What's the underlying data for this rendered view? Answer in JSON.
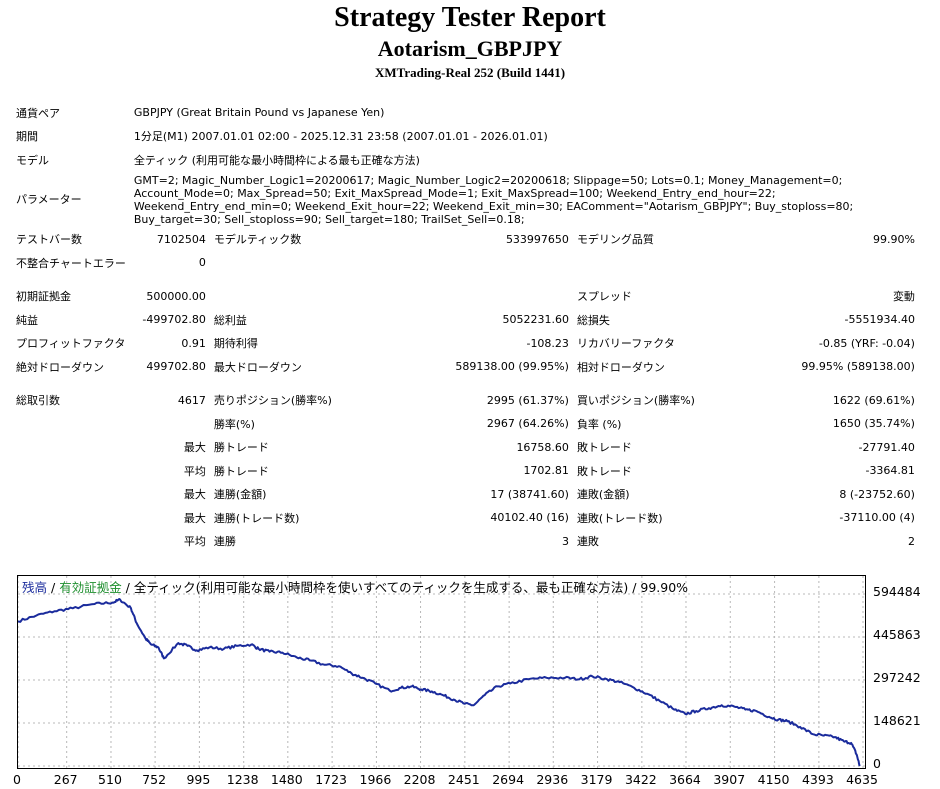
{
  "header": {
    "title": "Strategy Tester Report",
    "subtitle": "Aotarism_GBPJPY",
    "server": "XMTrading-Real 252 (Build 1441)"
  },
  "info": {
    "symbol_label": "通貨ペア",
    "symbol_value": "GBPJPY (Great Britain Pound vs Japanese Yen)",
    "period_label": "期間",
    "period_value": "1分足(M1) 2007.01.01 02:00 - 2025.12.31 23:58 (2007.01.01 - 2026.01.01)",
    "model_label": "モデル",
    "model_value": "全ティック (利用可能な最小時間枠による最も正確な方法)",
    "params_label": "パラメーター",
    "params_value": "GMT=2; Magic_Number_Logic1=20200617; Magic_Number_Logic2=20200618; Slippage=50; Lots=0.1; Money_Management=0; Account_Mode=0; Max_Spread=50; Exit_MaxSpread_Mode=1; Exit_MaxSpread=100; Weekend_Entry_end_hour=22; Weekend_Entry_end_min=0; Weekend_Exit_hour=22; Weekend_Exit_min=30; EAComment=\"Aotarism_GBPJPY\"; Buy_stoploss=80; Buy_target=30; Sell_stoploss=90; Sell_target=180; TrailSet_Sell=0.18;"
  },
  "stats": {
    "bars_label": "テストバー数",
    "bars_value": "7102504",
    "ticks_label": "モデルティック数",
    "ticks_value": "533997650",
    "quality_label": "モデリング品質",
    "quality_value": "99.90%",
    "mismatch_label": "不整合チャートエラー",
    "mismatch_value": "0",
    "deposit_label": "初期証拠金",
    "deposit_value": "500000.00",
    "spread_label": "スプレッド",
    "spread_value": "変動",
    "netprofit_label": "純益",
    "netprofit_value": "-499702.80",
    "grossprofit_label": "総利益",
    "grossprofit_value": "5052231.60",
    "grossloss_label": "総損失",
    "grossloss_value": "-5551934.40",
    "pf_label": "プロフィットファクタ",
    "pf_value": "0.91",
    "expected_label": "期待利得",
    "expected_value": "-108.23",
    "recovery_label": "リカバリーファクタ",
    "recovery_value": "-0.85 (YRF: -0.04)",
    "absdd_label": "絶対ドローダウン",
    "absdd_value": "499702.80",
    "maxdd_label": "最大ドローダウン",
    "maxdd_value": "589138.00 (99.95%)",
    "reldd_label": "相対ドローダウン",
    "reldd_value": "99.95% (589138.00)",
    "trades_label": "総取引数",
    "trades_value": "4617",
    "short_label": "売りポジション(勝率%)",
    "short_value": "2995 (61.37%)",
    "long_label": "買いポジション(勝率%)",
    "long_value": "1622 (69.61%)",
    "winrate_label": "勝率(%)",
    "winrate_value": "2967 (64.26%)",
    "lossrate_label": "負率 (%)",
    "lossrate_value": "1650 (35.74%)",
    "max_label": "最大",
    "avg_label": "平均",
    "largest_win_label": "勝トレード",
    "largest_win_value": "16758.60",
    "largest_loss_label": "敗トレード",
    "largest_loss_value": "-27791.40",
    "avg_win_label": "勝トレード",
    "avg_win_value": "1702.81",
    "avg_loss_label": "敗トレード",
    "avg_loss_value": "-3364.81",
    "consec_wins_money_label": "連勝(金額)",
    "consec_wins_money_value": "17 (38741.60)",
    "consec_losses_money_label": "連敗(金額)",
    "consec_losses_money_value": "8 (-23752.60)",
    "consec_wins_count_label": "連勝(トレード数)",
    "consec_wins_count_value": "40102.40 (16)",
    "consec_losses_count_label": "連敗(トレード数)",
    "consec_losses_count_value": "-37110.00 (4)",
    "avg_consec_wins_label": "連勝",
    "avg_consec_wins_value": "3",
    "avg_consec_losses_label": "連敗",
    "avg_consec_losses_value": "2"
  },
  "chart_data": {
    "type": "line",
    "legend_balance": "残高",
    "legend_sep1": " / ",
    "legend_equity": "有効証拠金",
    "legend_rest": " / 全ティック(利用可能な最小時間枠を使いすべてのティックを生成する、最も正確な方法) / 99.90%",
    "colors": {
      "balance": "#1a2b9c",
      "equity": "#1e8f2e",
      "grid": "#b8b8b8"
    },
    "y_ticks": [
      "594484",
      "445863",
      "297242",
      "148621",
      "0"
    ],
    "y_tick_values": [
      594484,
      445863,
      297242,
      148621,
      0
    ],
    "x_ticks": [
      "0",
      "267",
      "510",
      "752",
      "995",
      "1238",
      "1480",
      "1723",
      "1966",
      "2208",
      "2451",
      "2694",
      "2936",
      "3179",
      "3422",
      "3664",
      "3907",
      "4150",
      "4393",
      "4635"
    ],
    "x_tick_values": [
      0,
      267,
      510,
      752,
      995,
      1238,
      1480,
      1723,
      1966,
      2208,
      2451,
      2694,
      2936,
      3179,
      3422,
      3664,
      3907,
      4150,
      4393,
      4635
    ],
    "xlim": [
      0,
      4617
    ],
    "ylim": [
      0,
      594484
    ],
    "grid": true,
    "series": [
      {
        "x": [
          0,
          100,
          200,
          300,
          420,
          520,
          560,
          620,
          650,
          700,
          730,
          770,
          800,
          880,
          930,
          980,
          1050,
          1130,
          1200,
          1280,
          1320,
          1380,
          1450,
          1530,
          1600,
          1680,
          1760,
          1830,
          1890,
          1960,
          2040,
          2100,
          2160,
          2210,
          2270,
          2330,
          2390,
          2451,
          2500,
          2560,
          2630,
          2700,
          2800,
          2900,
          3000,
          3080,
          3150,
          3230,
          3300,
          3380,
          3450,
          3520,
          3600,
          3660,
          3720,
          3790,
          3860,
          3930,
          3990,
          4050,
          4120,
          4170,
          4220,
          4290,
          4360,
          4420,
          4480,
          4530,
          4570,
          4600,
          4617
        ],
        "y": [
          500000,
          520000,
          535000,
          545000,
          560000,
          565000,
          575000,
          545000,
          495000,
          440000,
          420000,
          410000,
          372000,
          425000,
          415000,
          400000,
          410000,
          405000,
          415000,
          420000,
          405000,
          395000,
          392000,
          375000,
          365000,
          350000,
          345000,
          320000,
          305000,
          285000,
          260000,
          270000,
          275000,
          265000,
          258000,
          245000,
          230000,
          215000,
          210000,
          245000,
          275000,
          285000,
          300000,
          305000,
          305000,
          300000,
          310000,
          300000,
          290000,
          270000,
          250000,
          225000,
          195000,
          180000,
          190000,
          200000,
          210000,
          205000,
          195000,
          190000,
          170000,
          160000,
          155000,
          135000,
          110000,
          105000,
          100000,
          85000,
          80000,
          40000,
          0
        ]
      }
    ]
  }
}
